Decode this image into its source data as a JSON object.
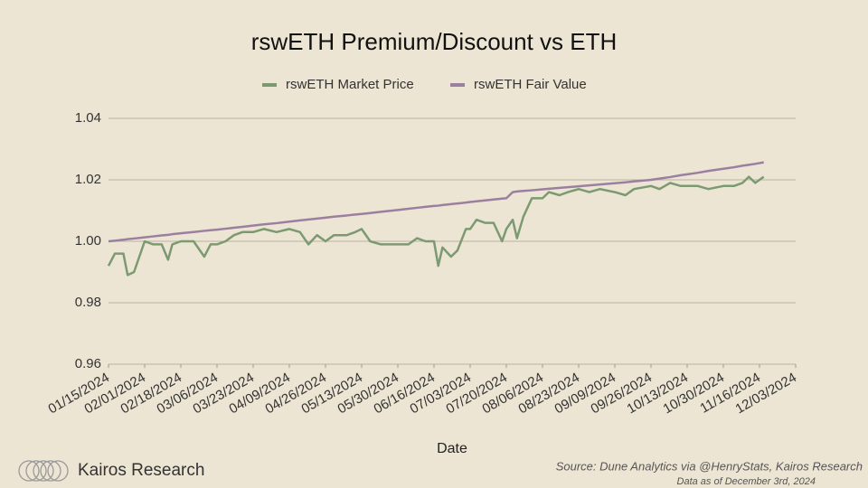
{
  "chart_data": {
    "type": "line",
    "title": "rswETH Premium/Discount vs ETH",
    "xlabel": "Date",
    "brand": "Kairos Research",
    "source": "Source: Dune Analytics via @HenryStats, Kairos Research",
    "note": "Data as of December 3rd, 2024",
    "legend": "top",
    "grid": true,
    "x": [
      "01/15/2024",
      "01/18/2024",
      "01/22/2024",
      "01/24/2024",
      "01/27/2024",
      "02/01/2024",
      "02/05/2024",
      "02/09/2024",
      "02/12/2024",
      "02/14/2024",
      "02/18/2024",
      "02/24/2024",
      "02/29/2024",
      "03/03/2024",
      "03/06/2024",
      "03/10/2024",
      "03/14/2024",
      "03/18/2024",
      "03/23/2024",
      "03/28/2024",
      "04/03/2024",
      "04/09/2024",
      "04/14/2024",
      "04/18/2024",
      "04/22/2024",
      "04/26/2024",
      "04/30/2024",
      "05/06/2024",
      "05/10/2024",
      "05/13/2024",
      "05/17/2024",
      "05/22/2024",
      "05/30/2024",
      "06/04/2024",
      "06/08/2024",
      "06/12/2024",
      "06/16/2024",
      "06/18/2024",
      "06/20/2024",
      "06/24/2024",
      "06/27/2024",
      "07/01/2024",
      "07/03/2024",
      "07/06/2024",
      "07/10/2024",
      "07/14/2024",
      "07/18/2024",
      "07/20/2024",
      "07/23/2024",
      "07/25/2024",
      "07/28/2024",
      "08/01/2024",
      "08/06/2024",
      "08/09/2024",
      "08/14/2024",
      "08/18/2024",
      "08/23/2024",
      "08/28/2024",
      "09/02/2024",
      "09/09/2024",
      "09/14/2024",
      "09/18/2024",
      "09/26/2024",
      "09/30/2024",
      "10/05/2024",
      "10/10/2024",
      "10/13/2024",
      "10/18/2024",
      "10/23/2024",
      "10/30/2024",
      "11/04/2024",
      "11/08/2024",
      "11/11/2024",
      "11/14/2024",
      "11/18/2024"
    ],
    "series": [
      {
        "name": "rswETH Market Price",
        "color": "#7b9a72",
        "values": [
          0.992,
          0.996,
          0.996,
          0.989,
          0.99,
          1.0,
          0.999,
          0.999,
          0.994,
          0.999,
          1.0,
          1.0,
          0.995,
          0.999,
          0.999,
          1.0,
          1.002,
          1.003,
          1.003,
          1.004,
          1.003,
          1.004,
          1.003,
          0.999,
          1.002,
          1.0,
          1.002,
          1.002,
          1.003,
          1.004,
          1.0,
          0.999,
          0.999,
          0.999,
          1.001,
          1.0,
          1.0,
          0.992,
          0.998,
          0.995,
          0.997,
          1.004,
          1.004,
          1.007,
          1.006,
          1.006,
          1.0,
          1.004,
          1.007,
          1.001,
          1.008,
          1.014,
          1.014,
          1.016,
          1.015,
          1.016,
          1.017,
          1.016,
          1.017,
          1.016,
          1.015,
          1.017,
          1.018,
          1.017,
          1.019,
          1.018,
          1.018,
          1.018,
          1.017,
          1.018,
          1.018,
          1.019,
          1.021,
          1.019,
          1.021
        ]
      },
      {
        "name": "rswETH Fair Value",
        "color": "#9b7fa0",
        "values": [
          1.0,
          1.0002,
          1.0005,
          1.0007,
          1.0009,
          1.0013,
          1.0016,
          1.0019,
          1.0021,
          1.0023,
          1.0026,
          1.003,
          1.0034,
          1.0036,
          1.0038,
          1.0041,
          1.0044,
          1.0047,
          1.0051,
          1.0055,
          1.0059,
          1.0064,
          1.0068,
          1.0071,
          1.0074,
          1.0077,
          1.008,
          1.0084,
          1.0087,
          1.0089,
          1.0092,
          1.0096,
          1.0102,
          1.0106,
          1.0109,
          1.0112,
          1.0115,
          1.0116,
          1.0118,
          1.0121,
          1.0123,
          1.0126,
          1.0128,
          1.013,
          1.0133,
          1.0136,
          1.0139,
          1.014,
          1.016,
          1.0162,
          1.0164,
          1.0166,
          1.0169,
          1.0171,
          1.0174,
          1.0176,
          1.0179,
          1.0182,
          1.0185,
          1.0189,
          1.0192,
          1.0195,
          1.02,
          1.0204,
          1.0209,
          1.0215,
          1.0218,
          1.0223,
          1.0229,
          1.0236,
          1.0241,
          1.0246,
          1.0249,
          1.0252,
          1.0257
        ]
      }
    ],
    "xlim": [
      "01/15/2024",
      "12/03/2024"
    ],
    "xticks": [
      "01/15/2024",
      "02/01/2024",
      "02/18/2024",
      "03/06/2024",
      "03/23/2024",
      "04/09/2024",
      "04/26/2024",
      "05/13/2024",
      "05/30/2024",
      "06/16/2024",
      "07/03/2024",
      "07/20/2024",
      "08/06/2024",
      "08/23/2024",
      "09/09/2024",
      "09/26/2024",
      "10/13/2024",
      "10/30/2024",
      "11/16/2024",
      "12/03/2024"
    ],
    "ylim": [
      0.96,
      1.04
    ],
    "yticks": [
      0.96,
      0.98,
      {
        "value": 1,
        "label": "1.00"
      },
      1.02,
      1.04
    ]
  }
}
